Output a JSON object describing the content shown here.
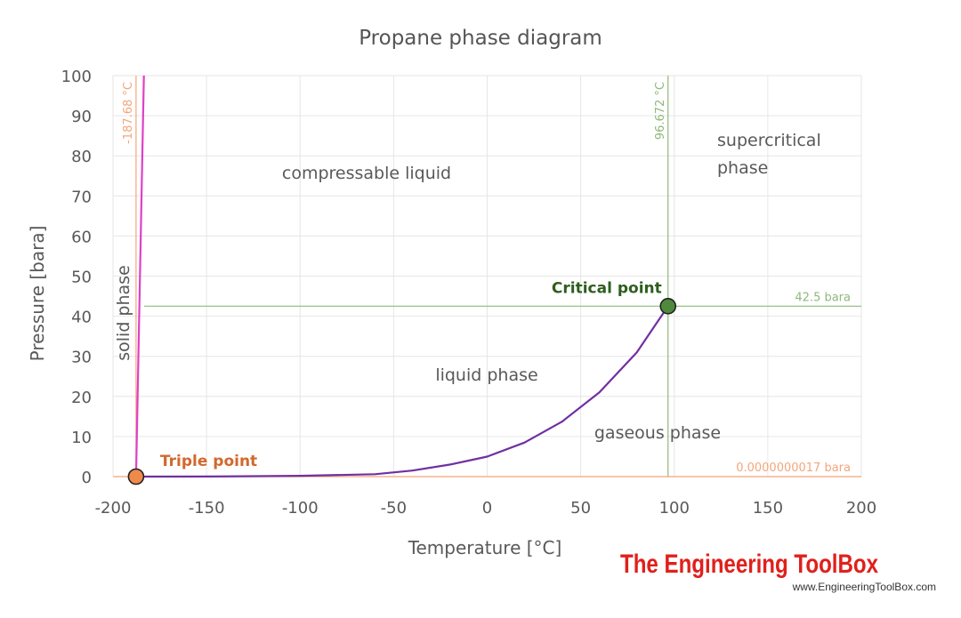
{
  "chart_data": {
    "type": "line",
    "title": "Propane phase diagram",
    "xlabel": "Temperature [°C]",
    "ylabel": "Pressure [bara]",
    "xlim": [
      -200,
      200
    ],
    "ylim": [
      0,
      100
    ],
    "xticks": [
      -200,
      -150,
      -100,
      -50,
      0,
      50,
      100,
      150,
      200
    ],
    "yticks": [
      0,
      10,
      20,
      30,
      40,
      50,
      60,
      70,
      80,
      90,
      100
    ],
    "x_tick_labels": [
      "-200",
      "-150",
      "-100",
      "-50",
      "0",
      "50",
      "100",
      "150",
      "200"
    ],
    "y_tick_labels": [
      "0",
      "10",
      "20",
      "30",
      "40",
      "50",
      "60",
      "70",
      "80",
      "90",
      "100"
    ],
    "grid": true,
    "series": [
      {
        "key": "melting",
        "color": "#e040c8",
        "x": [
          -187.68,
          -183.5
        ],
        "y": [
          0,
          100
        ]
      },
      {
        "key": "vaporization",
        "color": "#7030a0",
        "x": [
          -187.68,
          -150,
          -100,
          -60,
          -40,
          -20,
          0,
          20,
          40,
          60,
          80,
          96.672
        ],
        "y": [
          0,
          0.02,
          0.2,
          0.6,
          1.5,
          3.0,
          5.0,
          8.5,
          13.7,
          21.0,
          31.0,
          42.5
        ]
      }
    ],
    "reference_lines": [
      {
        "orientation": "vertical",
        "value": -187.68,
        "label": "-187.68 °C",
        "color": "#f4a57a"
      },
      {
        "orientation": "vertical",
        "value": 96.672,
        "label": "96.672 °C",
        "color": "#8fb97a"
      },
      {
        "orientation": "horizontal",
        "value": 42.5,
        "label": "42.5 bara",
        "color": "#8fb97a"
      },
      {
        "orientation": "horizontal",
        "value": 0,
        "label": "0.0000000017 bara",
        "color": "#f4a57a"
      }
    ],
    "points": [
      {
        "key": "triple",
        "label": "Triple point",
        "x": -187.68,
        "y": 0,
        "fill": "#f08a4b",
        "label_color": "#d3682c"
      },
      {
        "key": "critical",
        "label": "Critical point",
        "x": 96.672,
        "y": 42.5,
        "fill": "#4f8a3c",
        "label_color": "#2e5e1e"
      }
    ],
    "regions": {
      "compressable_liquid": "compressable liquid",
      "supercritical_1": "supercritical",
      "supercritical_2": "phase",
      "solid": "solid phase",
      "liquid": "liquid phase",
      "gaseous": "gaseous phase"
    }
  },
  "watermark": {
    "brand": "The Engineering ToolBox",
    "url": "www.EngineeringToolBox.com"
  }
}
